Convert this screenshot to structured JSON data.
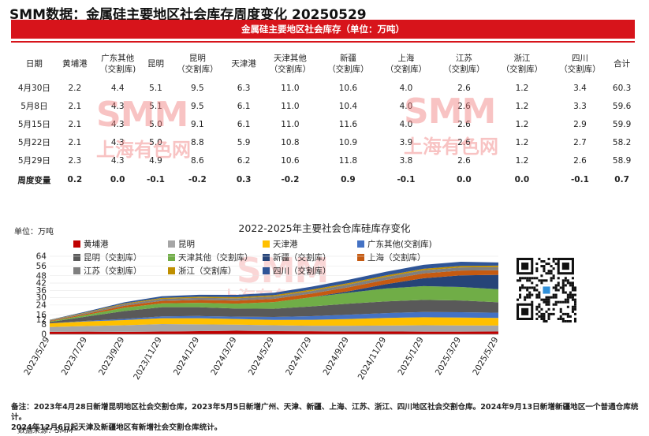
{
  "title": "SMM数据：金属硅主要地区社会库存周度变化 20250529",
  "table_title": "金属硅主要地区社会库存（单位：万吨）",
  "watermark": {
    "main": "SMM",
    "sub": "上海有色网"
  },
  "table": {
    "headers": [
      [
        "日期"
      ],
      [
        "黄埔港"
      ],
      [
        "广东其他",
        "（交割库)"
      ],
      [
        "昆明"
      ],
      [
        "昆明",
        "（交割库）"
      ],
      [
        "天津港"
      ],
      [
        "天津其他",
        "（交割库）"
      ],
      [
        "新疆",
        "（交割库）"
      ],
      [
        "上海",
        "（交割库）"
      ],
      [
        "江苏",
        "（交割库）"
      ],
      [
        "浙江",
        "（交割库）"
      ],
      [
        "四川",
        "（交割库）"
      ],
      [
        "合计"
      ]
    ],
    "rows": [
      [
        "4月30日",
        "2.2",
        "4.4",
        "5.1",
        "9.5",
        "6.3",
        "11.0",
        "10.6",
        "4.0",
        "2.6",
        "1.2",
        "3.4",
        "60.3"
      ],
      [
        "5月8日",
        "2.1",
        "4.3",
        "5.1",
        "9.5",
        "6.1",
        "11.0",
        "10.4",
        "4.0",
        "2.6",
        "1.2",
        "3.3",
        "59.6"
      ],
      [
        "5月15日",
        "2.1",
        "4.3",
        "5.0",
        "9.1",
        "6.1",
        "11.0",
        "11.6",
        "4.0",
        "2.6",
        "1.2",
        "2.9",
        "59.9"
      ],
      [
        "5月22日",
        "2.1",
        "4.3",
        "5.0",
        "8.8",
        "5.9",
        "10.8",
        "10.9",
        "3.9",
        "2.6",
        "1.2",
        "2.7",
        "58.2"
      ],
      [
        "5月29日",
        "2.3",
        "4.3",
        "4.9",
        "8.6",
        "6.2",
        "10.6",
        "11.8",
        "3.8",
        "2.6",
        "1.2",
        "2.6",
        "58.9"
      ]
    ],
    "change_row": [
      "周度变量",
      "0.2",
      "0.0",
      "-0.1",
      "-0.2",
      "0.3",
      "-0.2",
      "0.9",
      "-0.1",
      "0.0",
      "0.0",
      "-0.1",
      "0.7"
    ]
  },
  "chart_data": {
    "type": "area",
    "title": "2022-2025年主要社会仓库硅库存变化",
    "ylabel": "单位：万吨",
    "ylim": [
      0,
      64
    ],
    "yticks": [
      0,
      8,
      12,
      16,
      24,
      30,
      36,
      42,
      48,
      56,
      64
    ],
    "x": [
      "2023/5/29",
      "2023/7/29",
      "2023/9/29",
      "2023/11/29",
      "2024/1/29",
      "2024/3/29",
      "2024/5/29",
      "2024/7/29",
      "2024/9/29",
      "2024/11/29",
      "2025/1/29",
      "2025/3/29",
      "2025/5/29"
    ],
    "x_tick_labels": [
      "2023/5/29",
      "2023/7/29",
      "2023/9/29",
      "2023/11/29",
      "2024/1/29",
      "2024/3/29",
      "2024/5/29",
      "2024/7/29",
      "2024/9/29",
      "2024/11/29",
      "2025/1/29",
      "2025/3/29",
      "2025/5/29"
    ],
    "legend_position": "top",
    "series": [
      {
        "name": "黄埔港",
        "color": "#c00000",
        "values": [
          2.0,
          2.2,
          2.0,
          2.3,
          2.6,
          2.9,
          2.6,
          2.5,
          2.3,
          2.3,
          2.2,
          2.2,
          2.3
        ]
      },
      {
        "name": "昆明",
        "color": "#a6a6a6",
        "values": [
          4.0,
          4.6,
          5.4,
          6.1,
          5.6,
          5.0,
          4.8,
          4.5,
          4.7,
          4.9,
          5.2,
          5.1,
          4.9
        ]
      },
      {
        "name": "天津港",
        "color": "#ffc000",
        "values": [
          3.0,
          3.8,
          4.2,
          4.8,
          5.0,
          4.6,
          4.4,
          4.9,
          5.5,
          6.2,
          6.6,
          6.4,
          6.2
        ]
      },
      {
        "name": "广东其他(交割库)",
        "color": "#4472c4",
        "values": [
          0,
          0.5,
          1.0,
          1.5,
          1.8,
          2.0,
          2.4,
          3.0,
          3.6,
          4.0,
          4.3,
          4.4,
          4.3
        ]
      },
      {
        "name": "昆明（交割库）",
        "color": "#595959",
        "values": [
          1.0,
          3.5,
          6.5,
          7.5,
          7.2,
          6.6,
          6.7,
          8.0,
          9.0,
          9.6,
          9.9,
          9.6,
          8.6
        ]
      },
      {
        "name": "天津其他（交割库）",
        "color": "#70ad47",
        "values": [
          0.5,
          1.4,
          2.7,
          3.2,
          3.6,
          4.0,
          5.5,
          7.5,
          9.0,
          10.6,
          11.3,
          11.1,
          10.6
        ]
      },
      {
        "name": "新疆（交割库）",
        "color": "#264478",
        "values": [
          0,
          0,
          0,
          0,
          0,
          0,
          0,
          0,
          1.2,
          3.5,
          6.5,
          9.5,
          11.8
        ]
      },
      {
        "name": "上海（交割库）",
        "color": "#c55a11",
        "values": [
          0.5,
          0.9,
          1.6,
          2.0,
          2.3,
          2.5,
          2.7,
          3.0,
          3.3,
          3.6,
          3.9,
          4.0,
          3.8
        ]
      },
      {
        "name": "江苏（交割库）",
        "color": "#7f7f7f",
        "values": [
          0.5,
          0.9,
          1.3,
          1.6,
          1.8,
          1.9,
          2.0,
          2.1,
          2.3,
          2.4,
          2.6,
          2.6,
          2.6
        ]
      },
      {
        "name": "浙江（交割库）",
        "color": "#bf8f00",
        "values": [
          0.2,
          0.4,
          0.6,
          0.8,
          0.9,
          1.0,
          1.0,
          1.1,
          1.1,
          1.2,
          1.2,
          1.2,
          1.2
        ]
      },
      {
        "name": "四川（交割库）",
        "color": "#2f5597",
        "values": [
          0.2,
          0.6,
          1.0,
          1.4,
          1.6,
          1.8,
          2.0,
          2.4,
          2.8,
          3.0,
          3.3,
          3.4,
          2.6
        ]
      }
    ]
  },
  "footnote_lines": [
    "备注：2023年4月28日新增昆明地区社会交割仓库，2023年5月5日新增广州、天津、新疆、上海、江苏、浙江、四川地区社会交割仓库。2024年9月13日新增新疆地区一个普通仓库统计。",
    "2024年12月6日起天津及新疆地区有新增社会交割仓库统计。"
  ],
  "source": "数据来源：SMM"
}
